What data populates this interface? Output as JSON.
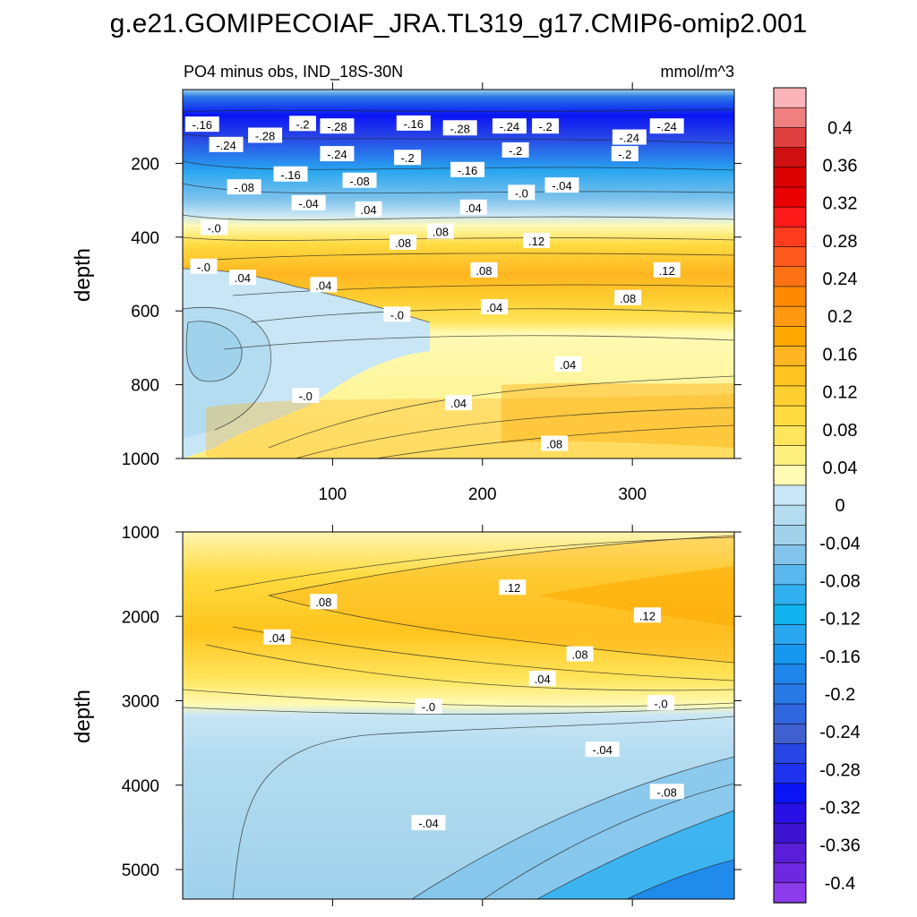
{
  "chart_data": {
    "type": "heatmap",
    "title": "g.e21.GOMIPECOIAF_JRA.TL319_g17.CMIP6-omip2.001",
    "subtitle": "PO4 minus obs, IND_18S-30N",
    "units": "mmol/m^3",
    "colorbar": {
      "labels": [
        "0.4",
        "0.36",
        "0.32",
        "0.28",
        "0.24",
        "0.2",
        "0.16",
        "0.12",
        "0.08",
        "0.04",
        "0",
        "-0.04",
        "-0.08",
        "-0.12",
        "-0.16",
        "-0.2",
        "-0.24",
        "-0.28",
        "-0.32",
        "-0.36",
        "-0.4"
      ],
      "colors": [
        "#fbb4b9",
        "#f08080",
        "#e04040",
        "#d01010",
        "#dc0000",
        "#ea0000",
        "#ff1a1a",
        "#ff3c1e",
        "#ff5a1e",
        "#ff7214",
        "#ff8a00",
        "#ff9a10",
        "#ffa800",
        "#ffb520",
        "#ffc41e",
        "#ffcf30",
        "#ffdb40",
        "#ffe55c",
        "#fff080",
        "#fffab4",
        "#c8e6f5",
        "#b4dcf0",
        "#a0d2ec",
        "#82c4ec",
        "#5ab8ee",
        "#30b0f0",
        "#10b4ee",
        "#28a6f0",
        "#1498f0",
        "#1e86ea",
        "#2878e6",
        "#3066e0",
        "#4060d0",
        "#2846e6",
        "#1e32f0",
        "#0a14f5",
        "#2810e6",
        "#3c14d0",
        "#5a1ed8",
        "#6e28e0",
        "#8c3cea"
      ]
    },
    "panels": [
      {
        "name": "upper",
        "ylabel": "depth",
        "x_ticks": [
          100,
          200,
          300
        ],
        "y_ticks": [
          200,
          400,
          600,
          800,
          1000
        ],
        "xlim": [
          0,
          368
        ],
        "ylim": [
          0,
          1000
        ],
        "contour_labels": [
          {
            "t": "-.16",
            "x": 13,
            "y": 95
          },
          {
            "t": "-.2",
            "x": 80,
            "y": 93
          },
          {
            "t": "-.28",
            "x": 103,
            "y": 100
          },
          {
            "t": "-.16",
            "x": 154,
            "y": 92
          },
          {
            "t": "-.28",
            "x": 185,
            "y": 105
          },
          {
            "t": "-.24",
            "x": 218,
            "y": 100
          },
          {
            "t": "-.2",
            "x": 242,
            "y": 100
          },
          {
            "t": "-.24",
            "x": 323,
            "y": 100
          },
          {
            "t": "-.24",
            "x": 29,
            "y": 150
          },
          {
            "t": "-.28",
            "x": 55,
            "y": 125
          },
          {
            "t": "-.24",
            "x": 103,
            "y": 175
          },
          {
            "t": "-.2",
            "x": 150,
            "y": 185
          },
          {
            "t": "-.2",
            "x": 222,
            "y": 165
          },
          {
            "t": "-.2",
            "x": 295,
            "y": 175
          },
          {
            "t": "-.24",
            "x": 298,
            "y": 130
          },
          {
            "t": "-.16",
            "x": 72,
            "y": 230
          },
          {
            "t": "-.08",
            "x": 41,
            "y": 265
          },
          {
            "t": "-.08",
            "x": 118,
            "y": 247
          },
          {
            "t": "-.16",
            "x": 190,
            "y": 218
          },
          {
            "t": "-.0",
            "x": 226,
            "y": 280
          },
          {
            "t": "-.04",
            "x": 253,
            "y": 260
          },
          {
            "t": "-.04",
            "x": 84,
            "y": 308
          },
          {
            "t": "-.0",
            "x": 21,
            "y": 375
          },
          {
            "t": ".04",
            "x": 124,
            "y": 325
          },
          {
            "t": ".04",
            "x": 194,
            "y": 320
          },
          {
            "t": ".08",
            "x": 147,
            "y": 415
          },
          {
            "t": ".08",
            "x": 172,
            "y": 385
          },
          {
            "t": ".12",
            "x": 236,
            "y": 410
          },
          {
            "t": "-.0",
            "x": 14,
            "y": 480
          },
          {
            "t": ".04",
            "x": 40,
            "y": 510
          },
          {
            "t": ".04",
            "x": 94,
            "y": 530
          },
          {
            "t": ".08",
            "x": 201,
            "y": 490
          },
          {
            "t": ".12",
            "x": 323,
            "y": 490
          },
          {
            "t": ".08",
            "x": 297,
            "y": 565
          },
          {
            "t": ".04",
            "x": 208,
            "y": 590
          },
          {
            "t": "-.0",
            "x": 143,
            "y": 610
          },
          {
            "t": ".04",
            "x": 257,
            "y": 745
          },
          {
            "t": "-.0",
            "x": 82,
            "y": 830
          },
          {
            "t": ".04",
            "x": 184,
            "y": 850
          },
          {
            "t": ".08",
            "x": 248,
            "y": 960
          }
        ]
      },
      {
        "name": "lower",
        "ylabel": "depth",
        "x_ticks": [
          100,
          200,
          300
        ],
        "y_ticks": [
          1000,
          2000,
          3000,
          4000,
          5000
        ],
        "xlim": [
          0,
          368
        ],
        "ylim": [
          1000,
          5350
        ],
        "contour_labels": [
          {
            "t": ".08",
            "x": 94,
            "y": 1830
          },
          {
            "t": ".04",
            "x": 63,
            "y": 2250
          },
          {
            "t": ".12",
            "x": 220,
            "y": 1660
          },
          {
            "t": ".12",
            "x": 310,
            "y": 1990
          },
          {
            "t": ".08",
            "x": 265,
            "y": 2450
          },
          {
            "t": ".04",
            "x": 240,
            "y": 2740
          },
          {
            "t": "-.0",
            "x": 164,
            "y": 3070
          },
          {
            "t": "-.0",
            "x": 319,
            "y": 3030
          },
          {
            "t": "-.04",
            "x": 280,
            "y": 3580
          },
          {
            "t": "-.08",
            "x": 323,
            "y": 4080
          },
          {
            "t": "-.04",
            "x": 164,
            "y": 4450
          }
        ]
      }
    ]
  }
}
